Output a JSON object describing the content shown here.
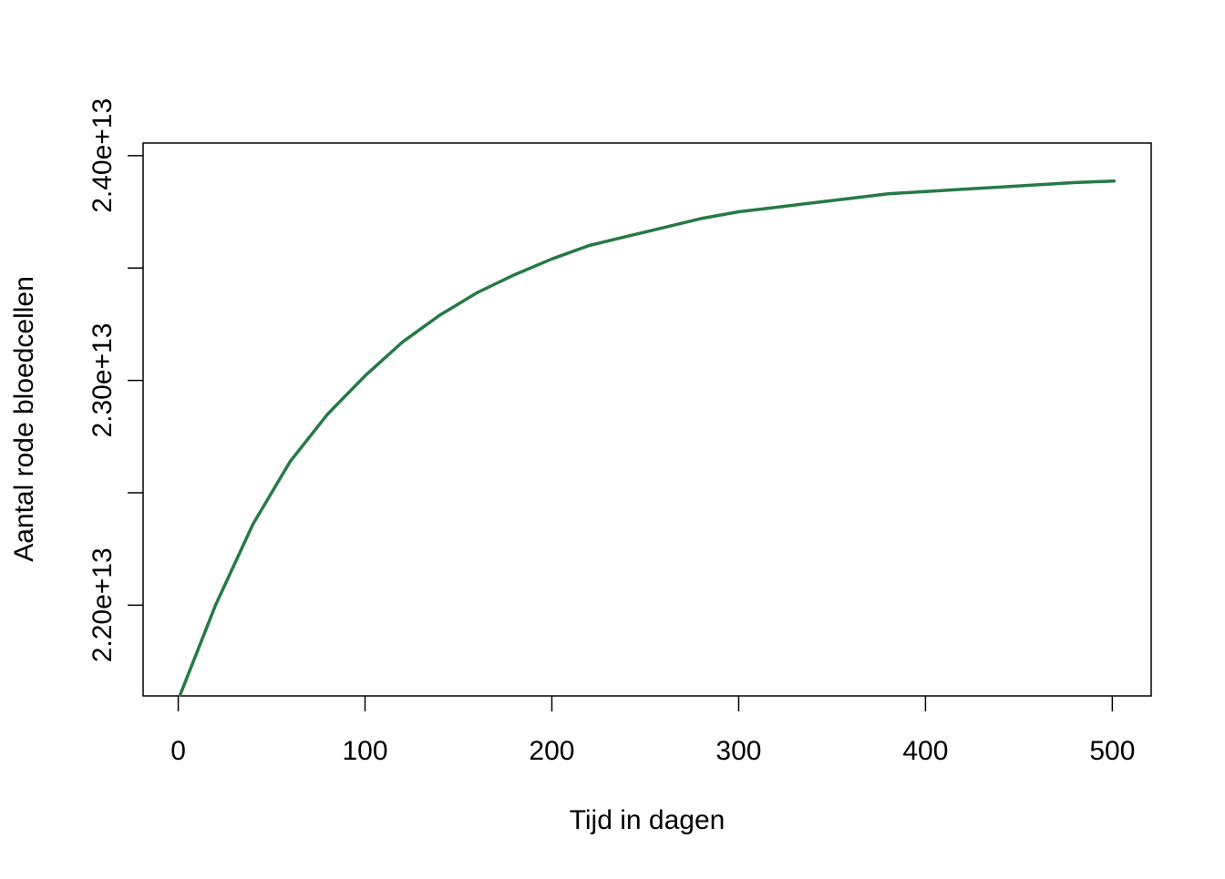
{
  "chart_data": {
    "type": "line",
    "title": "",
    "xlabel": "Tijd in dagen",
    "ylabel": "Aantal rode bloedcellen",
    "xlim": [
      -18.8,
      520.8
    ],
    "ylim": [
      21596000000000.0,
      24056000000000.0
    ],
    "x_ticks": [
      0,
      100,
      200,
      300,
      400,
      500
    ],
    "x_tick_labels": [
      "0",
      "100",
      "200",
      "300",
      "400",
      "500"
    ],
    "y_ticks": [
      22000000000000.0,
      22500000000000.0,
      23000000000000.0,
      23500000000000.0,
      24000000000000.0
    ],
    "y_tick_labels": [
      "2.20e+13",
      "",
      "2.30e+13",
      "",
      "2.40e+13"
    ],
    "grid": false,
    "series": [
      {
        "color": "#267a45",
        "x": [
          1,
          20,
          40,
          60,
          80,
          100,
          120,
          140,
          160,
          180,
          200,
          220,
          240,
          260,
          280,
          300,
          320,
          340,
          360,
          380,
          400,
          420,
          440,
          460,
          480,
          501
        ],
        "y": [
          21600000000000.0,
          22000000000000.0,
          22360000000000.0,
          22640000000000.0,
          22850000000000.0,
          23020000000000.0,
          23170000000000.0,
          23290000000000.0,
          23390000000000.0,
          23470000000000.0,
          23540000000000.0,
          23600000000000.0,
          23640000000000.0,
          23680000000000.0,
          23720000000000.0,
          23750000000000.0,
          23770000000000.0,
          23790000000000.0,
          23810000000000.0,
          23830000000000.0,
          23840000000000.0,
          23850000000000.0,
          23860000000000.0,
          23870000000000.0,
          23880000000000.0,
          23887000000000.0
        ]
      }
    ]
  }
}
